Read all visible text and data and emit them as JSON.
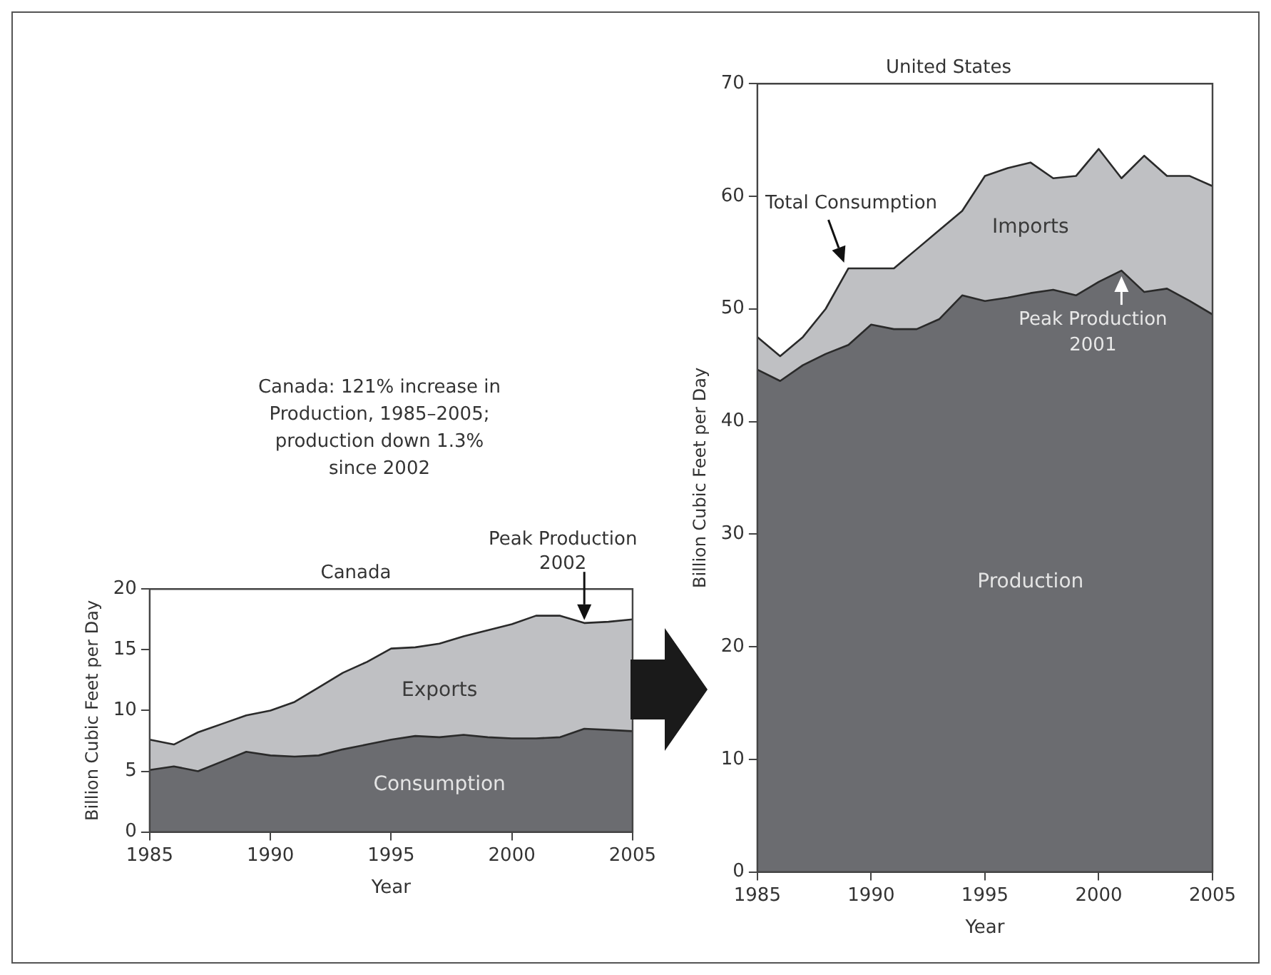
{
  "chart_data": [
    {
      "type": "area",
      "title": "Canada",
      "xlabel": "Year",
      "ylabel": "Billion Cubic Feet per Day",
      "stacked": true,
      "legend": false,
      "grid": false,
      "x": [
        1985,
        1986,
        1987,
        1988,
        1989,
        1990,
        1991,
        1992,
        1993,
        1994,
        1995,
        1996,
        1997,
        1998,
        1999,
        2000,
        2001,
        2002,
        2003,
        2004,
        2005
      ],
      "xlim": [
        1985,
        2005
      ],
      "xticks": [
        1985,
        1990,
        1995,
        2000,
        2005
      ],
      "ylim": [
        0,
        20
      ],
      "yticks": [
        0,
        5,
        10,
        15,
        20
      ],
      "series": [
        {
          "name": "Consumption",
          "color": "#6b6c70",
          "values": [
            5.1,
            5.4,
            5.0,
            5.8,
            6.6,
            6.3,
            6.2,
            6.3,
            6.8,
            7.2,
            7.6,
            7.9,
            7.8,
            8.0,
            7.8,
            7.7,
            7.7,
            7.8,
            8.5,
            8.4,
            8.3
          ]
        },
        {
          "name": "Exports",
          "color": "#bfc0c3",
          "values": [
            2.5,
            1.8,
            3.2,
            3.1,
            3.0,
            3.7,
            4.5,
            5.6,
            6.3,
            6.8,
            7.5,
            7.3,
            7.7,
            8.1,
            8.8,
            9.4,
            10.1,
            10.0,
            8.7,
            8.9,
            9.2
          ]
        }
      ],
      "annotations": [
        "Canada: 121% increase in Production, 1985–2005; production down 1.3% since 2002",
        {
          "text": "Peak Production 2002",
          "x": 2003,
          "y": 17.2
        }
      ]
    },
    {
      "type": "area",
      "title": "United States",
      "xlabel": "Year",
      "ylabel": "Billion Cubic Feet per Day",
      "stacked": true,
      "legend": false,
      "grid": false,
      "x": [
        1985,
        1986,
        1987,
        1988,
        1989,
        1990,
        1991,
        1992,
        1993,
        1994,
        1995,
        1996,
        1997,
        1998,
        1999,
        2000,
        2001,
        2002,
        2003,
        2004,
        2005
      ],
      "xlim": [
        1985,
        2005
      ],
      "xticks": [
        1985,
        1990,
        1995,
        2000,
        2005
      ],
      "ylim": [
        0,
        70
      ],
      "yticks": [
        0,
        10,
        20,
        30,
        40,
        50,
        60,
        70
      ],
      "series": [
        {
          "name": "Production",
          "color": "#6b6c70",
          "values": [
            44.6,
            43.6,
            45.0,
            46.0,
            46.8,
            48.6,
            48.2,
            48.2,
            49.1,
            51.2,
            50.7,
            51.0,
            51.4,
            51.7,
            51.2,
            52.4,
            53.4,
            51.5,
            51.8,
            50.7,
            49.5
          ]
        },
        {
          "name": "Imports",
          "color": "#bfc0c3",
          "values": [
            2.9,
            2.2,
            2.5,
            4.0,
            6.8,
            5.0,
            5.4,
            7.1,
            7.9,
            7.5,
            11.1,
            11.5,
            11.6,
            9.9,
            10.6,
            11.8,
            8.2,
            12.1,
            10.0,
            11.1,
            11.4
          ]
        }
      ],
      "annotations": [
        {
          "text": "Total Consumption",
          "x": 1989,
          "y": 53.6
        },
        {
          "text": "Peak Production 2001",
          "x": 2001,
          "y": 53.4
        }
      ]
    }
  ]
}
